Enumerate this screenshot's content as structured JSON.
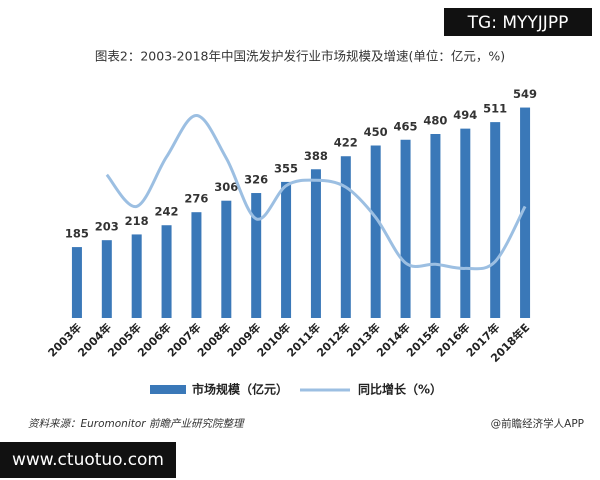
{
  "watermark": "TG: MYYJJPP",
  "chart_data": {
    "type": "bar",
    "title": "图表2：2003-2018年中国洗发护发行业市场规模及增速(单位：亿元，%)",
    "categories": [
      "2003年",
      "2004年",
      "2005年",
      "2006年",
      "2007年",
      "2008年",
      "2009年",
      "2010年",
      "2011年",
      "2012年",
      "2013年",
      "2014年",
      "2015年",
      "2016年",
      "2017年",
      "2018年E"
    ],
    "series": [
      {
        "name": "市场规模（亿元）",
        "type": "bar",
        "color": "#3a78b8",
        "values": [
          185,
          203,
          218,
          242,
          276,
          306,
          326,
          355,
          388,
          422,
          450,
          465,
          480,
          494,
          511,
          549
        ]
      },
      {
        "name": "同比增长（%）",
        "type": "line",
        "axis": "y2",
        "color": "#9cbfe2",
        "values": [
          null,
          9.7,
          7.4,
          11,
          14,
          10.9,
          6.5,
          8.9,
          9.3,
          8.8,
          6.6,
          3.3,
          3.2,
          2.9,
          3.4,
          7.4
        ]
      }
    ],
    "ylim": [
      0,
      600
    ],
    "y2lim": [
      -0.7,
      16
    ],
    "legend": "bottom"
  },
  "source": "资料来源：Euromonitor  前瞻产业研究院整理",
  "credit": "@前瞻经济学人APP",
  "footer": "www.ctuotuo.com"
}
